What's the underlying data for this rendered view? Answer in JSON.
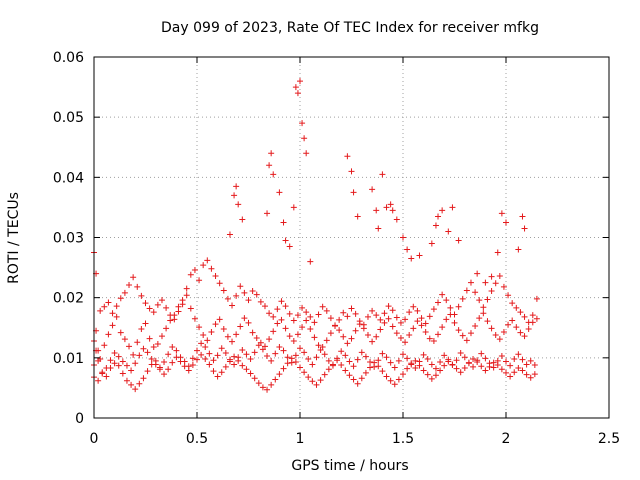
{
  "chart_data": {
    "type": "scatter",
    "title": "Day 099 of 2023, Rate Of TEC Index for receiver mfkg",
    "xlabel": "GPS time / hours",
    "ylabel": "ROTI / TECUs",
    "xlim": [
      0,
      2.5
    ],
    "ylim": [
      0,
      0.06
    ],
    "xticks": [
      "0",
      "0.5",
      "1",
      "1.5",
      "2",
      "2.5"
    ],
    "xtick_values": [
      0,
      0.5,
      1,
      1.5,
      2,
      2.5
    ],
    "yticks": [
      "0",
      "0.01",
      "0.02",
      "0.03",
      "0.04",
      "0.05",
      "0.06"
    ],
    "ytick_values": [
      0,
      0.01,
      0.02,
      0.03,
      0.04,
      0.05,
      0.06
    ],
    "grid": true,
    "marker": "+",
    "color": "#e41a1c",
    "series": [
      {
        "name": "ROTI",
        "x": [
          0.0,
          0.01,
          0.02,
          0.03,
          0.05,
          0.07,
          0.09,
          0.11,
          0.13,
          0.15,
          0.17,
          0.19,
          0.21,
          0.23,
          0.25,
          0.27,
          0.29,
          0.31,
          0.33,
          0.35,
          0.37,
          0.39,
          0.41,
          0.43,
          0.45,
          0.47,
          0.49,
          0.51,
          0.53,
          0.55,
          0.57,
          0.59,
          0.61,
          0.63,
          0.65,
          0.67,
          0.69,
          0.71,
          0.73,
          0.75,
          0.77,
          0.79,
          0.81,
          0.83,
          0.85,
          0.87,
          0.89,
          0.91,
          0.93,
          0.95,
          0.97,
          0.99,
          1.01,
          1.03,
          1.05,
          1.07,
          1.09,
          1.11,
          1.13,
          1.15,
          1.17,
          1.19,
          1.21,
          1.23,
          1.25,
          1.27,
          1.29,
          1.31,
          1.33,
          1.35,
          1.37,
          1.39,
          1.41,
          1.43,
          1.45,
          1.47,
          1.49,
          1.51,
          1.53,
          1.55,
          1.57,
          1.59,
          1.61,
          1.63,
          1.65,
          1.67,
          1.69,
          1.71,
          1.73,
          1.75,
          1.77,
          1.79,
          1.81,
          1.83,
          1.85,
          1.87,
          1.89,
          1.91,
          1.93,
          1.95,
          1.97,
          1.99,
          2.01,
          2.03,
          2.05,
          2.07,
          2.09,
          2.11,
          2.13,
          2.15,
          0.0,
          0.02,
          0.04,
          0.06,
          0.08,
          0.1,
          0.12,
          0.14,
          0.16,
          0.18,
          0.2,
          0.22,
          0.24,
          0.26,
          0.28,
          0.3,
          0.32,
          0.34,
          0.36,
          0.38,
          0.4,
          0.42,
          0.44,
          0.46,
          0.48,
          0.5,
          0.52,
          0.54,
          0.56,
          0.58,
          0.6,
          0.62,
          0.64,
          0.66,
          0.68,
          0.7,
          0.72,
          0.74,
          0.76,
          0.78,
          0.8,
          0.82,
          0.84,
          0.86,
          0.88,
          0.9,
          0.92,
          0.94,
          0.96,
          0.98,
          1.0,
          1.02,
          1.04,
          1.06,
          1.08,
          1.1,
          1.12,
          1.14,
          1.16,
          1.18,
          1.2,
          1.22,
          1.24,
          1.26,
          1.28,
          1.3,
          1.32,
          1.34,
          1.36,
          1.38,
          1.4,
          1.42,
          1.44,
          1.46,
          1.48,
          1.5,
          1.52,
          1.54,
          1.56,
          1.58,
          1.6,
          1.62,
          1.64,
          1.66,
          1.68,
          1.7,
          1.72,
          1.74,
          1.76,
          1.78,
          1.8,
          1.82,
          1.84,
          1.86,
          1.88,
          1.9,
          1.92,
          1.94,
          1.96,
          1.98,
          2.0,
          2.02,
          2.04,
          2.06,
          2.08,
          2.1,
          2.12,
          2.14,
          0.01,
          0.03,
          0.05,
          0.07,
          0.09,
          0.11,
          0.13,
          0.15,
          0.17,
          0.19,
          0.21,
          0.23,
          0.25,
          0.27,
          0.29,
          0.31,
          0.33,
          0.35,
          0.37,
          0.39,
          0.41,
          0.43,
          0.45,
          0.47,
          0.49,
          0.51,
          0.53,
          0.55,
          0.57,
          0.59,
          0.61,
          0.63,
          0.65,
          0.67,
          0.69,
          0.71,
          0.73,
          0.75,
          0.77,
          0.79,
          0.81,
          0.83,
          0.85,
          0.87,
          0.89,
          0.91,
          0.93,
          0.95,
          0.97,
          0.99,
          1.01,
          1.03,
          1.05,
          1.07,
          1.09,
          1.11,
          1.13,
          1.15,
          1.17,
          1.19,
          1.21,
          1.23,
          1.25,
          1.27,
          1.29,
          1.31,
          1.33,
          1.35,
          1.37,
          1.39,
          1.41,
          1.43,
          1.45,
          1.47,
          1.49,
          1.51,
          1.53,
          1.55,
          1.57,
          1.59,
          1.61,
          1.63,
          1.65,
          1.67,
          1.69,
          1.71,
          1.73,
          1.75,
          1.77,
          1.79,
          1.81,
          1.83,
          1.85,
          1.87,
          1.89,
          1.91,
          1.93,
          1.95,
          1.97,
          1.99,
          2.01,
          2.03,
          2.05,
          2.07,
          2.09,
          2.11,
          2.13,
          2.15,
          0.0,
          0.02,
          0.04,
          0.06,
          0.08,
          0.1,
          0.12,
          0.14,
          0.16,
          0.18,
          0.2,
          0.22,
          0.24,
          0.26,
          0.28,
          0.3,
          0.32,
          0.34,
          0.36,
          0.38,
          0.4,
          0.42,
          0.44,
          0.46,
          0.48,
          0.5,
          0.52,
          0.54,
          0.56,
          0.58,
          0.6,
          0.62,
          0.64,
          0.66,
          0.68,
          0.7,
          0.72,
          0.74,
          0.76,
          0.78,
          0.8,
          0.82,
          0.84,
          0.86,
          0.88,
          0.9,
          0.92,
          0.94,
          0.96,
          0.98,
          1.0,
          1.02,
          1.04,
          1.06,
          1.08,
          1.1,
          1.12,
          1.14,
          1.16,
          1.18,
          1.2,
          1.22,
          1.24,
          1.26,
          1.28,
          1.3,
          1.32,
          1.34,
          1.36,
          1.38,
          1.4,
          1.42,
          1.44,
          1.46,
          1.48,
          1.5,
          1.52,
          1.54,
          1.56,
          1.58,
          1.6,
          1.62,
          1.64,
          1.66,
          1.68,
          1.7,
          1.72,
          1.74,
          1.76,
          1.78,
          1.8,
          1.82,
          1.84,
          1.86,
          1.88,
          1.9,
          1.92,
          1.94,
          1.96,
          1.98,
          2.0,
          2.02,
          2.04,
          2.06,
          2.08,
          2.1,
          2.12,
          2.14,
          0.0,
          0.01,
          0.66,
          0.68,
          0.69,
          0.7,
          0.72,
          0.84,
          0.85,
          0.86,
          0.87,
          0.9,
          0.92,
          0.93,
          0.95,
          0.97,
          0.98,
          0.99,
          1.0,
          1.01,
          1.02,
          1.03,
          1.05,
          1.23,
          1.25,
          1.26,
          1.28,
          1.35,
          1.37,
          1.38,
          1.4,
          1.42,
          1.44,
          1.45,
          1.47,
          1.5,
          1.52,
          1.54,
          1.58,
          1.64,
          1.66,
          1.67,
          1.69,
          1.72,
          1.74,
          1.77,
          1.86,
          1.9,
          1.93,
          1.96,
          1.98,
          2.0,
          2.06,
          2.08,
          2.09
        ],
        "y": [
          0.0128,
          0.0145,
          0.0112,
          0.0098,
          0.0121,
          0.0139,
          0.0154,
          0.0168,
          0.0142,
          0.0131,
          0.0119,
          0.0105,
          0.0126,
          0.0148,
          0.0157,
          0.0132,
          0.0118,
          0.0123,
          0.0136,
          0.0149,
          0.0162,
          0.0171,
          0.0185,
          0.0196,
          0.0204,
          0.0182,
          0.0165,
          0.0151,
          0.0138,
          0.0129,
          0.0143,
          0.0156,
          0.0164,
          0.0148,
          0.0135,
          0.0127,
          0.0139,
          0.0152,
          0.0166,
          0.0158,
          0.0142,
          0.0133,
          0.0125,
          0.0119,
          0.0131,
          0.0144,
          0.0157,
          0.0163,
          0.0149,
          0.0136,
          0.0128,
          0.0139,
          0.0151,
          0.0162,
          0.0148,
          0.0134,
          0.0121,
          0.0118,
          0.0129,
          0.0141,
          0.0153,
          0.0146,
          0.0135,
          0.0124,
          0.0132,
          0.0145,
          0.0156,
          0.0149,
          0.0138,
          0.0127,
          0.0135,
          0.0147,
          0.0158,
          0.0165,
          0.0152,
          0.0141,
          0.0133,
          0.0126,
          0.0138,
          0.0149,
          0.0161,
          0.0154,
          0.0143,
          0.0132,
          0.0128,
          0.0139,
          0.0151,
          0.0164,
          0.0172,
          0.0158,
          0.0146,
          0.0137,
          0.0129,
          0.0141,
          0.0153,
          0.0166,
          0.0174,
          0.0161,
          0.0149,
          0.0138,
          0.0131,
          0.0143,
          0.0155,
          0.0162,
          0.0151,
          0.0142,
          0.0136,
          0.0148,
          0.0159,
          0.0165,
          0.0088,
          0.0095,
          0.0076,
          0.0069,
          0.0083,
          0.0091,
          0.0087,
          0.0074,
          0.0062,
          0.0055,
          0.0048,
          0.0057,
          0.0066,
          0.0078,
          0.0089,
          0.0095,
          0.0084,
          0.0073,
          0.0081,
          0.0092,
          0.0101,
          0.0094,
          0.0086,
          0.0079,
          0.0088,
          0.0097,
          0.0105,
          0.0098,
          0.0089,
          0.0078,
          0.0069,
          0.0076,
          0.0085,
          0.0094,
          0.0102,
          0.0095,
          0.0087,
          0.0081,
          0.0074,
          0.0066,
          0.0058,
          0.0051,
          0.0047,
          0.0055,
          0.0064,
          0.0073,
          0.0082,
          0.0091,
          0.0099,
          0.0093,
          0.0084,
          0.0076,
          0.0068,
          0.0061,
          0.0055,
          0.0063,
          0.0072,
          0.0081,
          0.0089,
          0.0096,
          0.0088,
          0.0079,
          0.0071,
          0.0064,
          0.0057,
          0.0066,
          0.0075,
          0.0084,
          0.0092,
          0.0086,
          0.0078,
          0.0069,
          0.0062,
          0.0056,
          0.0064,
          0.0073,
          0.0082,
          0.0089,
          0.0095,
          0.0087,
          0.0079,
          0.0072,
          0.0065,
          0.0071,
          0.0079,
          0.0087,
          0.0094,
          0.0089,
          0.0082,
          0.0076,
          0.0083,
          0.0091,
          0.0098,
          0.0093,
          0.0086,
          0.0079,
          0.0085,
          0.0092,
          0.0088,
          0.0081,
          0.0075,
          0.0069,
          0.0076,
          0.0083,
          0.0079,
          0.0072,
          0.0067,
          0.0073,
          0.0112,
          0.0178,
          0.0185,
          0.0192,
          0.0174,
          0.0186,
          0.0199,
          0.0208,
          0.0221,
          0.0234,
          0.0218,
          0.0203,
          0.0191,
          0.0182,
          0.0176,
          0.0188,
          0.0196,
          0.0183,
          0.0171,
          0.0164,
          0.0177,
          0.0189,
          0.0215,
          0.0238,
          0.0246,
          0.0229,
          0.0254,
          0.0262,
          0.0248,
          0.0236,
          0.0224,
          0.0212,
          0.0198,
          0.0187,
          0.0203,
          0.0219,
          0.0208,
          0.0196,
          0.0211,
          0.0205,
          0.0193,
          0.0186,
          0.0174,
          0.0168,
          0.0181,
          0.0194,
          0.0186,
          0.0173,
          0.0162,
          0.0171,
          0.0183,
          0.0176,
          0.0168,
          0.0159,
          0.0172,
          0.0185,
          0.0178,
          0.0166,
          0.0154,
          0.0163,
          0.0175,
          0.0169,
          0.0182,
          0.0173,
          0.0161,
          0.0155,
          0.0168,
          0.0178,
          0.0171,
          0.0163,
          0.0174,
          0.0186,
          0.0179,
          0.0167,
          0.0158,
          0.0164,
          0.0176,
          0.0185,
          0.0178,
          0.0166,
          0.0157,
          0.0169,
          0.0181,
          0.0192,
          0.0205,
          0.0196,
          0.0183,
          0.0172,
          0.0185,
          0.0198,
          0.0212,
          0.0225,
          0.0209,
          0.0196,
          0.0184,
          0.0197,
          0.0211,
          0.0224,
          0.0236,
          0.0218,
          0.0204,
          0.0191,
          0.0183,
          0.0176,
          0.0168,
          0.0159,
          0.0171,
          0.0198,
          0.0068,
          0.0062,
          0.0074,
          0.0083,
          0.0096,
          0.0108,
          0.0102,
          0.0094,
          0.0087,
          0.0079,
          0.0091,
          0.0104,
          0.0115,
          0.0109,
          0.0098,
          0.0089,
          0.0081,
          0.0093,
          0.0106,
          0.0118,
          0.0112,
          0.0101,
          0.0094,
          0.0086,
          0.0099,
          0.0112,
          0.0124,
          0.0118,
          0.0107,
          0.0096,
          0.0104,
          0.0116,
          0.0108,
          0.0097,
          0.0089,
          0.0101,
          0.0113,
          0.0106,
          0.0098,
          0.0109,
          0.0121,
          0.0114,
          0.0103,
          0.0095,
          0.0107,
          0.0118,
          0.0112,
          0.0101,
          0.0092,
          0.0104,
          0.0116,
          0.0109,
          0.0098,
          0.0089,
          0.0101,
          0.0113,
          0.0106,
          0.0095,
          0.0087,
          0.0099,
          0.0111,
          0.0104,
          0.0094,
          0.0086,
          0.0097,
          0.0109,
          0.0102,
          0.0093,
          0.0085,
          0.0096,
          0.0107,
          0.0101,
          0.0092,
          0.0084,
          0.0095,
          0.0106,
          0.0099,
          0.0091,
          0.0083,
          0.0094,
          0.0105,
          0.0098,
          0.0089,
          0.0082,
          0.0093,
          0.0104,
          0.0097,
          0.0088,
          0.0096,
          0.0108,
          0.0101,
          0.0092,
          0.0085,
          0.0096,
          0.0107,
          0.0099,
          0.0091,
          0.0084,
          0.0095,
          0.0103,
          0.0094,
          0.0087,
          0.0098,
          0.0106,
          0.0097,
          0.0089,
          0.0095,
          0.0088,
          0.0275,
          0.024,
          0.0305,
          0.037,
          0.0385,
          0.0355,
          0.033,
          0.034,
          0.042,
          0.044,
          0.0405,
          0.0375,
          0.0325,
          0.0295,
          0.0285,
          0.035,
          0.055,
          0.054,
          0.056,
          0.049,
          0.0465,
          0.044,
          0.026,
          0.0435,
          0.041,
          0.0375,
          0.0335,
          0.038,
          0.0345,
          0.0315,
          0.0405,
          0.035,
          0.0355,
          0.0345,
          0.033,
          0.03,
          0.028,
          0.0265,
          0.027,
          0.029,
          0.032,
          0.0335,
          0.0345,
          0.031,
          0.035,
          0.0295,
          0.024,
          0.0225,
          0.0235,
          0.0275,
          0.034,
          0.0325,
          0.028,
          0.0335,
          0.0315
        ]
      }
    ]
  }
}
